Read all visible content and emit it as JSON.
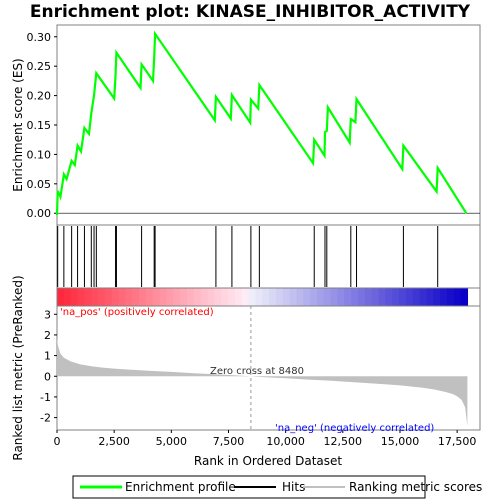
{
  "colors": {
    "es_line": "#00ff00",
    "hits": "#000000",
    "metric_fill": "#c0c0c0",
    "pos_text": "#ff0000",
    "neg_text": "#0000ff",
    "frame": "#808080"
  },
  "chart_data": [
    {
      "type": "line",
      "name": "enrichment-profile",
      "title": "Enrichment plot: KINASE_INHIBITOR_ACTIVITY",
      "ylabel": "Enrichment score (ES)",
      "xlim": [
        0,
        18500
      ],
      "ylim": [
        -0.02,
        0.32
      ],
      "yticks": [
        "0.00",
        "0.05",
        "0.10",
        "0.15",
        "0.20",
        "0.25",
        "0.30"
      ],
      "x": [
        0,
        30,
        150,
        300,
        420,
        640,
        780,
        900,
        1050,
        1200,
        1400,
        1500,
        1620,
        1720,
        2500,
        2560,
        2600,
        3650,
        3700,
        4200,
        4250,
        4290,
        6900,
        6950,
        7600,
        7650,
        8450,
        8480,
        8800,
        8850,
        11200,
        11250,
        11700,
        11720,
        11800,
        11850,
        12800,
        12850,
        13050,
        13100,
        15100,
        15150,
        16600,
        16650,
        17900
      ],
      "y": [
        -0.003,
        0.038,
        0.028,
        0.066,
        0.058,
        0.089,
        0.082,
        0.115,
        0.105,
        0.145,
        0.135,
        0.17,
        0.2,
        0.238,
        0.195,
        0.233,
        0.273,
        0.213,
        0.253,
        0.225,
        0.265,
        0.305,
        0.158,
        0.198,
        0.161,
        0.201,
        0.154,
        0.193,
        0.178,
        0.218,
        0.085,
        0.125,
        0.098,
        0.138,
        0.14,
        0.18,
        0.12,
        0.16,
        0.155,
        0.194,
        0.075,
        0.115,
        0.037,
        0.077,
        0.0
      ],
      "legend": [
        "Enrichment profile",
        "Hits",
        "Ranking metric scores"
      ]
    },
    {
      "type": "bar",
      "name": "hits-and-ranking",
      "xlabel": "Rank in Ordered Dataset",
      "ylabel": "Ranked list metric (PreRanked)",
      "xlim": [
        0,
        18500
      ],
      "ylim": [
        -2.6,
        3.4
      ],
      "xticks": [
        "0",
        "2,500",
        "5,000",
        "7,500",
        "10,000",
        "12,500",
        "15,000",
        "17,500"
      ],
      "yticks": [
        "3",
        "2",
        "1",
        "0",
        "-1",
        "-2"
      ],
      "hits": [
        30,
        300,
        640,
        900,
        1200,
        1500,
        1620,
        1720,
        2560,
        2600,
        3700,
        4250,
        4290,
        6950,
        7650,
        8480,
        8850,
        11250,
        11720,
        11800,
        12850,
        13100,
        15150,
        16650
      ],
      "metric_curve": {
        "rank": [
          0,
          50,
          150,
          300,
          600,
          1000,
          1500,
          2000,
          2500,
          3000,
          4000,
          5000,
          6000,
          7000,
          8000,
          8480,
          9000,
          10000,
          11000,
          12000,
          13000,
          14000,
          15000,
          16000,
          16500,
          17000,
          17300,
          17500,
          17700,
          17850,
          17950
        ],
        "score": [
          1.85,
          1.45,
          1.1,
          0.9,
          0.72,
          0.58,
          0.48,
          0.42,
          0.37,
          0.33,
          0.27,
          0.21,
          0.15,
          0.09,
          0.03,
          0.0,
          -0.04,
          -0.1,
          -0.16,
          -0.22,
          -0.29,
          -0.36,
          -0.44,
          -0.56,
          -0.64,
          -0.76,
          -0.86,
          -0.97,
          -1.15,
          -1.5,
          -2.4
        ]
      },
      "pos_label": "'na_pos' (positively correlated)",
      "neg_label": "'na_neg' (negatively correlated)",
      "zero_cross_label": "Zero cross at 8480",
      "zero_cross": 8480
    }
  ]
}
